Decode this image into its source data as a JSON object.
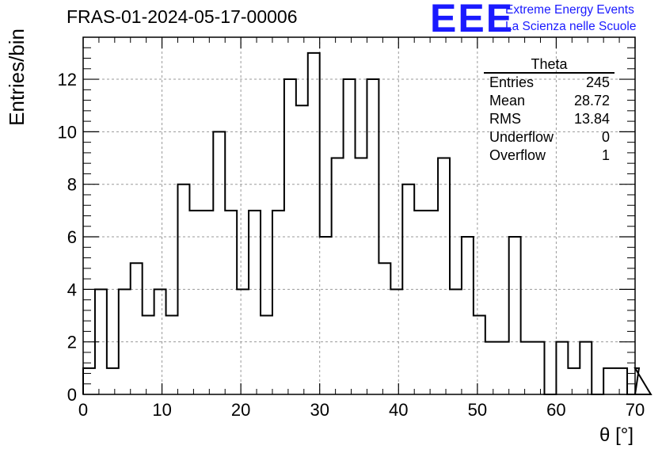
{
  "page_title": "FRAS-01-2024-05-17-00006",
  "brand": {
    "logo": "EEE",
    "line1": "Extreme Energy Events",
    "line2": "La Scienza nelle Scuole",
    "color": "#1a1aff"
  },
  "stats_box": {
    "title": "Theta",
    "rows": [
      {
        "label": "Entries",
        "value": "245"
      },
      {
        "label": "Mean",
        "value": "28.72"
      },
      {
        "label": "RMS",
        "value": "13.84"
      },
      {
        "label": "Underflow",
        "value": "0"
      },
      {
        "label": "Overflow",
        "value": "1"
      }
    ]
  },
  "chart_data": {
    "type": "histogram",
    "title": "FRAS-01-2024-05-17-00006",
    "xlabel": "θ [°]",
    "ylabel": "Entries/bin",
    "xlim": [
      0,
      70
    ],
    "ylim": [
      0,
      13.6
    ],
    "bin_width": 1.5,
    "grid": true,
    "x_ticks": [
      0,
      10,
      20,
      30,
      40,
      50,
      60,
      70
    ],
    "x_tick_labels": [
      "0",
      "10",
      "20",
      "30",
      "40",
      "50",
      "60",
      "70"
    ],
    "y_ticks": [
      0,
      2,
      4,
      6,
      8,
      10,
      12
    ],
    "y_tick_labels": [
      "0",
      "2",
      "4",
      "6",
      "8",
      "10",
      "12"
    ],
    "values": [
      1,
      4,
      1,
      4,
      5,
      3,
      4,
      3,
      8,
      7,
      7,
      10,
      7,
      4,
      7,
      3,
      7,
      12,
      11,
      13,
      6,
      9,
      12,
      9,
      12,
      5,
      4,
      8,
      7,
      7,
      9,
      4,
      6,
      3,
      2,
      2,
      6,
      2,
      2,
      0,
      2,
      1,
      2,
      0,
      1,
      1,
      0,
      1,
      0
    ],
    "line_color": "#000000"
  }
}
